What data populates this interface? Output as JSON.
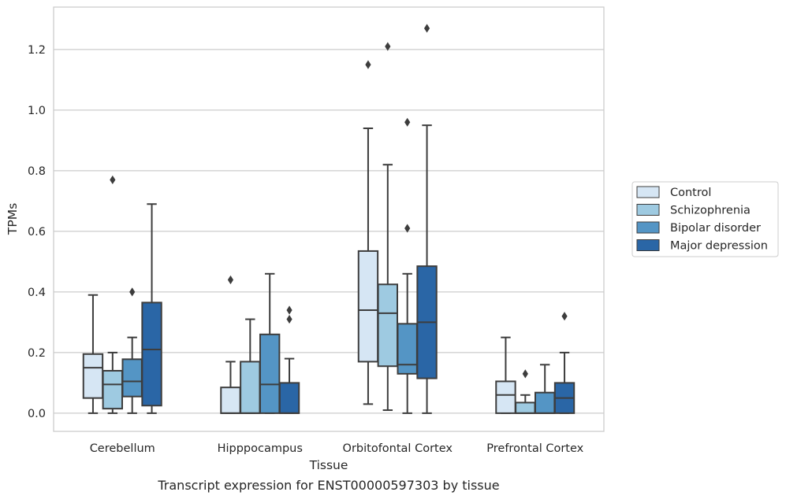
{
  "caption": "Transcript expression for ENST00000597303 by tissue",
  "colors": {
    "grid": "#cccccc",
    "frame": "#cccccc",
    "box_line": "#3d3d3d",
    "series": [
      "#d6e6f4",
      "#9ecae1",
      "#5495c5",
      "#2a66a6"
    ]
  },
  "chart_data": {
    "type": "box",
    "xlabel": "Tissue",
    "ylabel": "TPMs",
    "ylim": [
      -0.06,
      1.34
    ],
    "yticks": [
      0.0,
      0.2,
      0.4,
      0.6,
      0.8,
      1.0,
      1.2
    ],
    "ytick_labels": [
      "0.0",
      "0.2",
      "0.4",
      "0.6",
      "0.8",
      "1.0",
      "1.2"
    ],
    "grid": "horizontal",
    "legend_placement": "outside-right",
    "categories": [
      "Cerebellum",
      "Hipppocampus",
      "Orbitofontal Cortex",
      "Prefrontal Cortex"
    ],
    "series": [
      {
        "name": "Control",
        "boxes": [
          {
            "whislo": 0.0,
            "q1": 0.05,
            "med": 0.15,
            "q3": 0.195,
            "whishi": 0.39,
            "fliers": []
          },
          {
            "whislo": 0.0,
            "q1": 0.0,
            "med": 0.0,
            "q3": 0.085,
            "whishi": 0.17,
            "fliers": [
              0.44
            ]
          },
          {
            "whislo": 0.03,
            "q1": 0.17,
            "med": 0.34,
            "q3": 0.535,
            "whishi": 0.94,
            "fliers": [
              1.15
            ]
          },
          {
            "whislo": 0.0,
            "q1": 0.0,
            "med": 0.06,
            "q3": 0.105,
            "whishi": 0.25,
            "fliers": []
          }
        ]
      },
      {
        "name": "Schizophrenia",
        "boxes": [
          {
            "whislo": 0.0,
            "q1": 0.015,
            "med": 0.095,
            "q3": 0.14,
            "whishi": 0.2,
            "fliers": [
              0.77
            ]
          },
          {
            "whislo": 0.0,
            "q1": 0.0,
            "med": 0.0,
            "q3": 0.17,
            "whishi": 0.31,
            "fliers": []
          },
          {
            "whislo": 0.01,
            "q1": 0.155,
            "med": 0.33,
            "q3": 0.425,
            "whishi": 0.82,
            "fliers": [
              1.21
            ]
          },
          {
            "whislo": 0.0,
            "q1": 0.0,
            "med": 0.0,
            "q3": 0.035,
            "whishi": 0.06,
            "fliers": [
              0.13
            ]
          }
        ]
      },
      {
        "name": "Bipolar disorder",
        "boxes": [
          {
            "whislo": 0.0,
            "q1": 0.055,
            "med": 0.105,
            "q3": 0.178,
            "whishi": 0.25,
            "fliers": [
              0.4
            ]
          },
          {
            "whislo": 0.0,
            "q1": 0.0,
            "med": 0.095,
            "q3": 0.26,
            "whishi": 0.46,
            "fliers": []
          },
          {
            "whislo": 0.0,
            "q1": 0.13,
            "med": 0.16,
            "q3": 0.295,
            "whishi": 0.46,
            "fliers": [
              0.61,
              0.96
            ]
          },
          {
            "whislo": 0.0,
            "q1": 0.0,
            "med": 0.0,
            "q3": 0.068,
            "whishi": 0.16,
            "fliers": []
          }
        ]
      },
      {
        "name": "Major depression",
        "boxes": [
          {
            "whislo": 0.0,
            "q1": 0.025,
            "med": 0.21,
            "q3": 0.365,
            "whishi": 0.69,
            "fliers": []
          },
          {
            "whislo": 0.0,
            "q1": 0.0,
            "med": 0.0,
            "q3": 0.1,
            "whishi": 0.18,
            "fliers": [
              0.31,
              0.34
            ]
          },
          {
            "whislo": 0.0,
            "q1": 0.115,
            "med": 0.3,
            "q3": 0.485,
            "whishi": 0.95,
            "fliers": [
              1.27
            ]
          },
          {
            "whislo": 0.0,
            "q1": 0.0,
            "med": 0.05,
            "q3": 0.1,
            "whishi": 0.2,
            "fliers": [
              0.32
            ]
          }
        ]
      }
    ]
  }
}
